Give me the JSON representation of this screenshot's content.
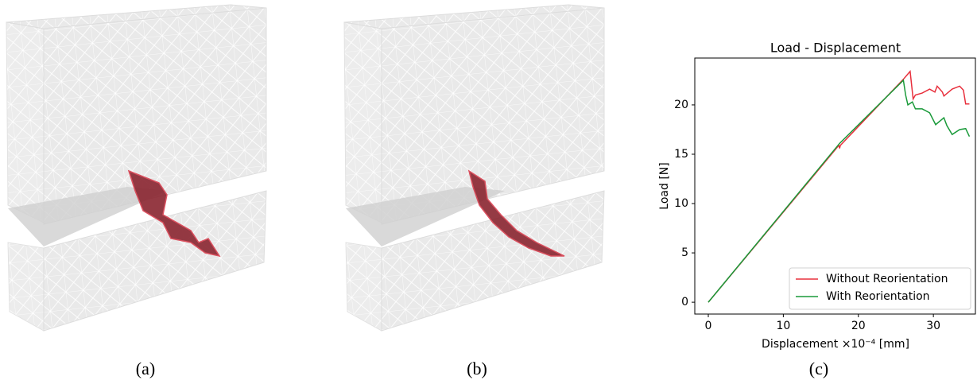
{
  "captions": [
    "(a)",
    "(b)",
    "(c)"
  ],
  "chart_data": {
    "type": "line",
    "title": "Load - Displacement",
    "x_label": "Displacement ×10⁻⁴ [mm]",
    "y_label": "Load [N]",
    "xlim": [
      -1.8,
      35.6
    ],
    "ylim": [
      -1.2,
      24.75
    ],
    "xticks": [
      0,
      10,
      20,
      30
    ],
    "yticks": [
      0,
      5,
      10,
      15,
      20
    ],
    "legend": "lower right",
    "grid": false,
    "series": [
      {
        "name": "Without Reorientation",
        "color": "#e8303d",
        "x": [
          0,
          17.4,
          17.5,
          17.6,
          26.0,
          26.9,
          27.3,
          27.6,
          28.5,
          29.5,
          30.2,
          30.5,
          31.2,
          31.4,
          32.5,
          33.5,
          34.0,
          34.3,
          34.8
        ],
        "values": [
          0,
          15.9,
          15.6,
          15.9,
          22.6,
          23.4,
          20.6,
          21.0,
          21.2,
          21.6,
          21.3,
          21.9,
          21.3,
          20.9,
          21.6,
          21.9,
          21.5,
          20.1,
          20.1
        ]
      },
      {
        "name": "With Reorientation",
        "color": "#1a9a3a",
        "x": [
          0,
          17.5,
          26.0,
          26.3,
          26.6,
          27.2,
          27.6,
          28.5,
          29.5,
          30.3,
          31.4,
          31.8,
          32.5,
          33.5,
          34.3,
          34.8
        ],
        "values": [
          0,
          16.1,
          22.5,
          21.0,
          20.0,
          20.3,
          19.6,
          19.6,
          19.2,
          18.0,
          18.7,
          17.9,
          17.0,
          17.5,
          17.6,
          16.8
        ]
      }
    ]
  }
}
